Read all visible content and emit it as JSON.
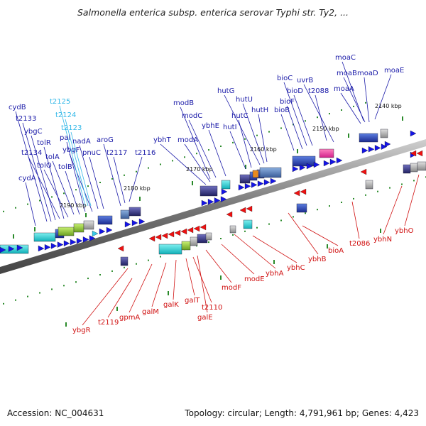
{
  "title": "Salmonella enterica subsp. enterica serovar Typhi str. Ty2, ...",
  "footer": {
    "accession": "Accession: NC_004631",
    "topology": "Topology: circular; Length: 4,791,961 bp; Genes: 4,423"
  },
  "colors": {
    "forward_label": "#1a1aa8",
    "reverse_label": "#d01010",
    "trna_label": "#33b8e8",
    "forward_arrow": "#1414e6",
    "reverse_arrow": "#ee1111",
    "backbone": "#777777",
    "tick_dot": "#2a8a2a"
  },
  "scale_ticks": [
    "2140 kbp",
    "2150 kbp",
    "2160 kbp",
    "2170 kbp",
    "2180 kbp",
    "2190 kbp"
  ],
  "forward_genes": [
    "moaC",
    "moaB",
    "moaD",
    "moaE",
    "moaA",
    "uvrB",
    "bioC",
    "bioD",
    "t2088",
    "bioF",
    "bioB",
    "hutG",
    "hutU",
    "hutC",
    "hutH",
    "hutI",
    "modB",
    "modC",
    "ybhE",
    "modA",
    "ybhT",
    "t2116",
    "t2117",
    "aroG",
    "pnuC",
    "nadA",
    "ybgF",
    "pal",
    "tolB",
    "tolA",
    "tolQ",
    "tolR",
    "t2134",
    "ybgC",
    "t2133",
    "cydB",
    "cydA"
  ],
  "trna_genes": [
    "t2125",
    "t2124",
    "t2123"
  ],
  "reverse_genes": [
    "ybgR",
    "t2119",
    "gpmA",
    "galM",
    "galK",
    "galT",
    "t2110",
    "galE",
    "modF",
    "modE",
    "ybhA",
    "ybhC",
    "ybhB",
    "bioA",
    "t2086",
    "ybhN",
    "ybhO"
  ]
}
